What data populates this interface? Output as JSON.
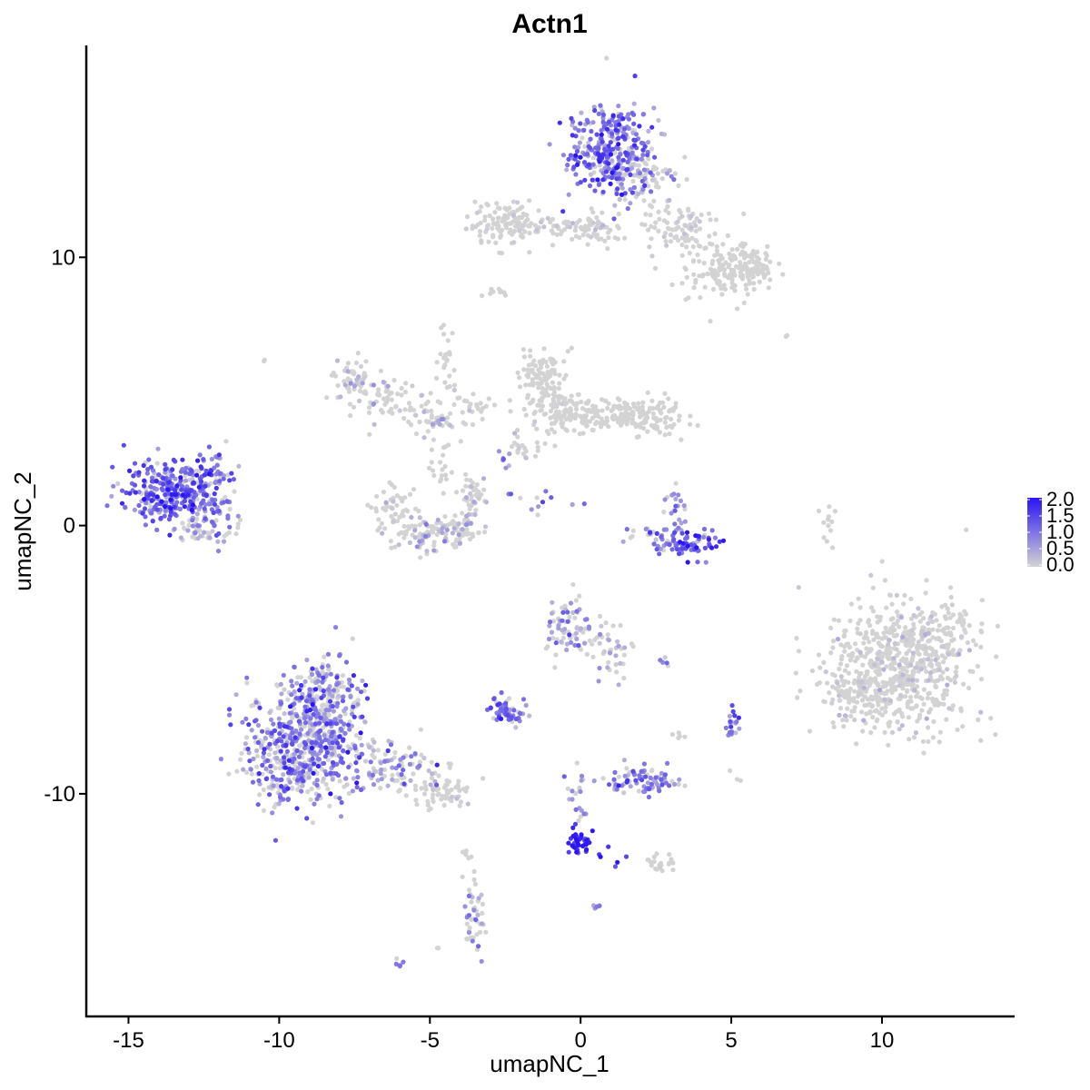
{
  "chart_data": {
    "type": "scatter",
    "title": "Actn1",
    "xlabel": "umapNC_1",
    "ylabel": "umapNC_2",
    "xlim": [
      -16.4,
      14.4
    ],
    "ylim": [
      -18.3,
      17.9
    ],
    "x_ticks": [
      {
        "value": -15,
        "label": "-15"
      },
      {
        "value": -10,
        "label": "-10"
      },
      {
        "value": -5,
        "label": "-5"
      },
      {
        "value": 0,
        "label": "0"
      },
      {
        "value": 5,
        "label": "5"
      },
      {
        "value": 10,
        "label": "10"
      }
    ],
    "y_ticks": [
      {
        "value": -10,
        "label": "-10"
      },
      {
        "value": 0,
        "label": "0"
      },
      {
        "value": 10,
        "label": "10"
      }
    ],
    "grid": false,
    "legend": {
      "placement": "right",
      "min": 0.0,
      "max": 2.0,
      "low_color": "#d3d3d3",
      "high_color": "#2a14f5",
      "ticks": [
        {
          "value": 2.0,
          "label": "2.0"
        },
        {
          "value": 1.5,
          "label": "1.5"
        },
        {
          "value": 1.0,
          "label": "1.0"
        },
        {
          "value": 0.5,
          "label": "0.5"
        },
        {
          "value": 0.0,
          "label": "0.0"
        }
      ]
    },
    "clusters": [
      {
        "cx": 1.0,
        "cy": 14.0,
        "sx": 0.7,
        "sy": 0.9,
        "n": 320,
        "expr": 1.0,
        "spread": 0.5
      },
      {
        "cx": 2.0,
        "cy": 13.0,
        "sx": 0.6,
        "sy": 0.5,
        "n": 80,
        "expr": 0.4,
        "spread": 0.4
      },
      {
        "cx": -2.5,
        "cy": 11.3,
        "sx": 0.6,
        "sy": 0.4,
        "n": 110,
        "expr": 0.02,
        "spread": 0.1
      },
      {
        "cx": -0.8,
        "cy": 11.1,
        "sx": 0.8,
        "sy": 0.2,
        "n": 50,
        "expr": 0.05,
        "spread": 0.2
      },
      {
        "cx": 0.6,
        "cy": 11.0,
        "sx": 0.4,
        "sy": 0.3,
        "n": 40,
        "expr": 0.1,
        "spread": 0.2
      },
      {
        "cx": 3.3,
        "cy": 11.0,
        "sx": 0.6,
        "sy": 0.5,
        "n": 90,
        "expr": 0.03,
        "spread": 0.1
      },
      {
        "cx": 4.8,
        "cy": 9.5,
        "sx": 0.6,
        "sy": 0.5,
        "n": 130,
        "expr": 0.0,
        "spread": 0.05
      },
      {
        "cx": 5.8,
        "cy": 9.7,
        "sx": 0.35,
        "sy": 0.3,
        "n": 70,
        "expr": 0.0,
        "spread": 0.05
      },
      {
        "cx": -2.9,
        "cy": 8.7,
        "sx": 0.15,
        "sy": 0.1,
        "n": 10,
        "expr": 0.0,
        "spread": 0.0
      },
      {
        "cx": -7.5,
        "cy": 5.4,
        "sx": 0.4,
        "sy": 0.4,
        "n": 60,
        "expr": 0.1,
        "spread": 0.3
      },
      {
        "cx": -6.3,
        "cy": 4.6,
        "sx": 0.6,
        "sy": 0.4,
        "n": 60,
        "expr": 0.1,
        "spread": 0.3
      },
      {
        "cx": -4.9,
        "cy": 3.8,
        "sx": 0.5,
        "sy": 0.3,
        "n": 40,
        "expr": 0.2,
        "spread": 0.3
      },
      {
        "cx": -4.5,
        "cy": 6.0,
        "sx": 0.15,
        "sy": 0.8,
        "n": 25,
        "expr": 0.05,
        "spread": 0.2
      },
      {
        "cx": -3.5,
        "cy": 4.4,
        "sx": 0.5,
        "sy": 0.3,
        "n": 25,
        "expr": 0.0,
        "spread": 0.1
      },
      {
        "cx": -4.6,
        "cy": 2.2,
        "sx": 0.2,
        "sy": 0.5,
        "n": 20,
        "expr": 0.0,
        "spread": 0.1
      },
      {
        "cx": -1.3,
        "cy": 5.8,
        "sx": 0.4,
        "sy": 0.4,
        "n": 70,
        "expr": 0.0,
        "spread": 0.1
      },
      {
        "cx": -1.0,
        "cy": 4.5,
        "sx": 0.5,
        "sy": 0.6,
        "n": 100,
        "expr": 0.03,
        "spread": 0.15
      },
      {
        "cx": 0.1,
        "cy": 4.2,
        "sx": 0.5,
        "sy": 0.4,
        "n": 70,
        "expr": 0.0,
        "spread": 0.05
      },
      {
        "cx": 1.4,
        "cy": 4.2,
        "sx": 0.6,
        "sy": 0.3,
        "n": 70,
        "expr": 0.0,
        "spread": 0.05
      },
      {
        "cx": 2.4,
        "cy": 4.0,
        "sx": 0.5,
        "sy": 0.4,
        "n": 80,
        "expr": 0.0,
        "spread": 0.05
      },
      {
        "cx": -1.8,
        "cy": 3.0,
        "sx": 0.3,
        "sy": 0.3,
        "n": 20,
        "expr": 0.05,
        "spread": 0.2
      },
      {
        "cx": -6.2,
        "cy": 0.6,
        "sx": 0.35,
        "sy": 0.5,
        "n": 50,
        "expr": 0.05,
        "spread": 0.2
      },
      {
        "cx": -5.2,
        "cy": -0.3,
        "sx": 0.6,
        "sy": 0.3,
        "n": 70,
        "expr": 0.2,
        "spread": 0.35
      },
      {
        "cx": -4.0,
        "cy": -0.1,
        "sx": 0.4,
        "sy": 0.3,
        "n": 60,
        "expr": 0.2,
        "spread": 0.3
      },
      {
        "cx": -3.6,
        "cy": 1.2,
        "sx": 0.2,
        "sy": 0.4,
        "n": 40,
        "expr": 0.1,
        "spread": 0.2
      },
      {
        "cx": -1.2,
        "cy": 0.8,
        "sx": 0.6,
        "sy": 0.2,
        "n": 12,
        "expr": 0.8,
        "spread": 0.3
      },
      {
        "cx": -2.5,
        "cy": 2.3,
        "sx": 0.15,
        "sy": 0.2,
        "n": 6,
        "expr": 0.6,
        "spread": 0.3
      },
      {
        "cx": 3.2,
        "cy": 0.7,
        "sx": 0.2,
        "sy": 0.4,
        "n": 20,
        "expr": 0.6,
        "spread": 0.4
      },
      {
        "cx": 3.5,
        "cy": -0.6,
        "sx": 0.6,
        "sy": 0.25,
        "n": 80,
        "expr": 1.2,
        "spread": 0.5
      },
      {
        "cx": 2.1,
        "cy": -0.4,
        "sx": 0.5,
        "sy": 0.2,
        "n": 15,
        "expr": 0.6,
        "spread": 0.4
      },
      {
        "cx": 8.2,
        "cy": 0.1,
        "sx": 0.1,
        "sy": 0.5,
        "n": 12,
        "expr": 0.0,
        "spread": 0.0
      },
      {
        "cx": 10.5,
        "cy": -5.3,
        "sx": 1.2,
        "sy": 1.2,
        "n": 600,
        "expr": 0.05,
        "spread": 0.2
      },
      {
        "cx": 9.2,
        "cy": -6.4,
        "sx": 0.6,
        "sy": 0.4,
        "n": 70,
        "expr": 0.0,
        "spread": 0.1
      },
      {
        "cx": 11.8,
        "cy": -4.0,
        "sx": 0.7,
        "sy": 0.6,
        "n": 90,
        "expr": 0.03,
        "spread": 0.15
      },
      {
        "cx": -0.4,
        "cy": -3.8,
        "sx": 0.35,
        "sy": 0.6,
        "n": 70,
        "expr": 0.6,
        "spread": 0.5
      },
      {
        "cx": 0.8,
        "cy": -4.3,
        "sx": 0.4,
        "sy": 0.4,
        "n": 30,
        "expr": 0.3,
        "spread": 0.3
      },
      {
        "cx": 1.0,
        "cy": -5.2,
        "sx": 0.3,
        "sy": 0.5,
        "n": 15,
        "expr": 0.5,
        "spread": 0.4
      },
      {
        "cx": -2.4,
        "cy": -6.9,
        "sx": 0.35,
        "sy": 0.25,
        "n": 60,
        "expr": 1.0,
        "spread": 0.4
      },
      {
        "cx": 2.8,
        "cy": -5.1,
        "sx": 0.15,
        "sy": 0.1,
        "n": 6,
        "expr": 0.8,
        "spread": 0.4
      },
      {
        "cx": 5.0,
        "cy": -7.4,
        "sx": 0.15,
        "sy": 0.3,
        "n": 18,
        "expr": 1.0,
        "spread": 0.4
      },
      {
        "cx": 2.2,
        "cy": -9.5,
        "sx": 0.6,
        "sy": 0.25,
        "n": 80,
        "expr": 0.9,
        "spread": 0.4
      },
      {
        "cx": 3.2,
        "cy": -7.7,
        "sx": 0.15,
        "sy": 0.2,
        "n": 5,
        "expr": 0.1,
        "spread": 0.1
      },
      {
        "cx": -9.0,
        "cy": -8.0,
        "sx": 1.0,
        "sy": 1.1,
        "n": 550,
        "expr": 0.8,
        "spread": 0.5
      },
      {
        "cx": -8.4,
        "cy": -6.2,
        "sx": 0.6,
        "sy": 0.6,
        "n": 120,
        "expr": 0.7,
        "spread": 0.5
      },
      {
        "cx": -9.5,
        "cy": -9.3,
        "sx": 0.8,
        "sy": 0.5,
        "n": 120,
        "expr": 0.6,
        "spread": 0.5
      },
      {
        "cx": -6.2,
        "cy": -9.0,
        "sx": 0.8,
        "sy": 0.5,
        "n": 100,
        "expr": 0.6,
        "spread": 0.5
      },
      {
        "cx": -4.6,
        "cy": -10.0,
        "sx": 0.6,
        "sy": 0.3,
        "n": 60,
        "expr": 0.1,
        "spread": 0.3
      },
      {
        "cx": -13.5,
        "cy": 1.3,
        "sx": 0.8,
        "sy": 0.6,
        "n": 330,
        "expr": 1.1,
        "spread": 0.5
      },
      {
        "cx": -12.3,
        "cy": 0.5,
        "sx": 0.5,
        "sy": 0.6,
        "n": 60,
        "expr": 0.8,
        "spread": 0.5
      },
      {
        "cx": -12.6,
        "cy": -0.2,
        "sx": 0.5,
        "sy": 0.2,
        "n": 30,
        "expr": 0.4,
        "spread": 0.3
      },
      {
        "cx": -11.9,
        "cy": 2.3,
        "sx": 0.3,
        "sy": 0.3,
        "n": 15,
        "expr": 0.8,
        "spread": 0.4
      },
      {
        "cx": -0.1,
        "cy": -10.2,
        "sx": 0.2,
        "sy": 0.7,
        "n": 20,
        "expr": 0.6,
        "spread": 0.4
      },
      {
        "cx": -0.1,
        "cy": -11.8,
        "sx": 0.2,
        "sy": 0.3,
        "n": 40,
        "expr": 1.8,
        "spread": 0.3
      },
      {
        "cx": 1.3,
        "cy": -12.2,
        "sx": 0.4,
        "sy": 0.2,
        "n": 6,
        "expr": 1.6,
        "spread": 0.3
      },
      {
        "cx": 2.5,
        "cy": -12.6,
        "sx": 0.3,
        "sy": 0.2,
        "n": 20,
        "expr": 0.1,
        "spread": 0.2
      },
      {
        "cx": 0.6,
        "cy": -14.2,
        "sx": 0.1,
        "sy": 0.1,
        "n": 5,
        "expr": 0.6,
        "spread": 0.3
      },
      {
        "cx": -3.5,
        "cy": -14.5,
        "sx": 0.2,
        "sy": 0.8,
        "n": 45,
        "expr": 0.4,
        "spread": 0.4
      },
      {
        "cx": -3.9,
        "cy": -12.3,
        "sx": 0.1,
        "sy": 0.3,
        "n": 5,
        "expr": 0.0,
        "spread": 0.1
      },
      {
        "cx": -6.0,
        "cy": -16.3,
        "sx": 0.1,
        "sy": 0.1,
        "n": 5,
        "expr": 1.0,
        "spread": 0.2
      },
      {
        "cx": 5.1,
        "cy": -9.5,
        "sx": 0.1,
        "sy": 0.3,
        "n": 3,
        "expr": 0.0,
        "spread": 0.0
      },
      {
        "cx": 6.8,
        "cy": 7.1,
        "sx": 0.05,
        "sy": 0.05,
        "n": 2,
        "expr": 0.0,
        "spread": 0.0
      },
      {
        "cx": -10.5,
        "cy": 6.1,
        "sx": 0.05,
        "sy": 0.05,
        "n": 2,
        "expr": 0.0,
        "spread": 0.0
      },
      {
        "cx": -4.7,
        "cy": -15.8,
        "sx": 0.05,
        "sy": 0.05,
        "n": 2,
        "expr": 0.0,
        "spread": 0.0
      }
    ]
  }
}
